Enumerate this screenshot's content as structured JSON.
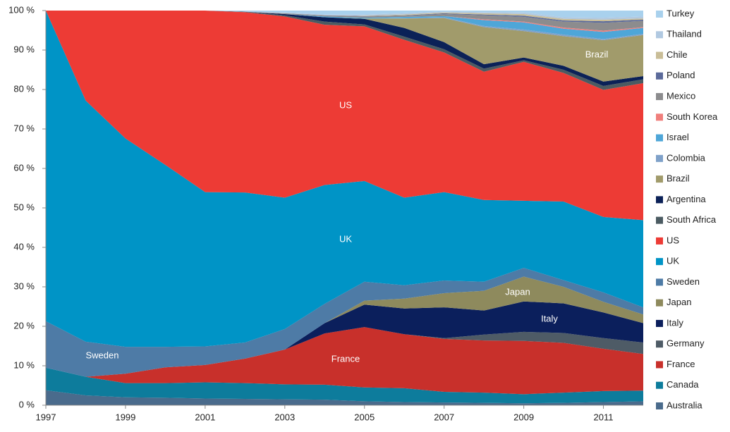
{
  "chart_data": {
    "type": "stacked_area",
    "x": [
      1997,
      1998,
      1999,
      2000,
      2001,
      2002,
      2003,
      2004,
      2005,
      2006,
      2007,
      2008,
      2009,
      2010,
      2011,
      2012
    ],
    "xlim": [
      1997,
      2012
    ],
    "xticks": [
      1997,
      1999,
      2001,
      2003,
      2005,
      2007,
      2009,
      2011
    ],
    "ylim": [
      0,
      100
    ],
    "yticks": [
      {
        "value": 0,
        "label": "0 %"
      },
      {
        "value": 10,
        "label": "10 %"
      },
      {
        "value": 20,
        "label": "20 %"
      },
      {
        "value": 30,
        "label": "30 %"
      },
      {
        "value": 40,
        "label": "40 %"
      },
      {
        "value": 50,
        "label": "50 %"
      },
      {
        "value": 60,
        "label": "60 %"
      },
      {
        "value": 70,
        "label": "70 %"
      },
      {
        "value": 80,
        "label": "80 %"
      },
      {
        "value": 90,
        "label": "90 %"
      },
      {
        "value": 100,
        "label": "100 %"
      }
    ],
    "legend": "right",
    "annotations": [
      "US",
      "UK",
      "Sweden",
      "France",
      "Japan",
      "Italy",
      "Brazil"
    ],
    "series": [
      {
        "name": "Australia",
        "color": "#4a6b8c",
        "values": [
          3.8,
          2.5,
          2.0,
          1.9,
          1.7,
          1.6,
          1.5,
          1.4,
          1.0,
          0.8,
          0.7,
          0.6,
          0.5,
          0.6,
          0.8,
          1.0
        ]
      },
      {
        "name": "Canada",
        "color": "#0d7c9c",
        "values": [
          5.7,
          4.7,
          3.6,
          3.7,
          4.1,
          4.0,
          3.8,
          3.8,
          3.5,
          3.5,
          2.7,
          2.6,
          2.3,
          2.6,
          2.8,
          2.7
        ]
      },
      {
        "name": "France",
        "color": "#c8302b",
        "values": [
          0,
          0,
          2.4,
          4.0,
          4.4,
          6.2,
          8.8,
          13.0,
          15.3,
          13.7,
          13.4,
          13.2,
          13.5,
          12.6,
          10.7,
          9.3
        ]
      },
      {
        "name": "Germany",
        "color": "#4e5b66",
        "values": [
          0,
          0,
          0,
          0,
          0,
          0,
          0,
          0,
          0,
          0,
          0.2,
          1.5,
          2.3,
          2.5,
          2.7,
          2.9
        ]
      },
      {
        "name": "Italy",
        "color": "#0b1f5c",
        "values": [
          0,
          0,
          0,
          0,
          0,
          0,
          0,
          2.6,
          5.7,
          6.5,
          7.8,
          6.1,
          7.7,
          7.5,
          6.5,
          4.9
        ]
      },
      {
        "name": "Japan",
        "color": "#8e8a5d",
        "values": [
          0,
          0,
          0,
          0,
          0,
          0,
          0,
          0,
          1.0,
          2.5,
          3.6,
          5.0,
          6.3,
          4.2,
          2.7,
          2.2
        ]
      },
      {
        "name": "Sweden",
        "color": "#4e7ba6",
        "values": [
          11.8,
          8.9,
          6.8,
          5.2,
          4.7,
          4.1,
          5.2,
          4.9,
          4.8,
          3.4,
          3.2,
          2.3,
          2.2,
          1.7,
          2.4,
          1.8
        ]
      },
      {
        "name": "UK",
        "color": "#0094c6",
        "values": [
          78.7,
          61.1,
          52.8,
          46.1,
          39.1,
          38.0,
          33.3,
          30.1,
          25.5,
          22.2,
          22.4,
          20.7,
          17.0,
          19.9,
          19.1,
          22.1
        ]
      },
      {
        "name": "US",
        "color": "#ed3b35",
        "values": [
          0,
          22.8,
          32.4,
          39.1,
          46.0,
          45.7,
          45.9,
          40.6,
          39.2,
          40.0,
          35.4,
          32.5,
          35.2,
          32.6,
          32.2,
          34.7
        ]
      },
      {
        "name": "South Africa",
        "color": "#4b5b62",
        "values": [
          0,
          0,
          0,
          0,
          0,
          0.1,
          0.3,
          0.8,
          0.5,
          0.8,
          0.8,
          0.8,
          0.4,
          0.8,
          1.0,
          1.0
        ]
      },
      {
        "name": "Argentina",
        "color": "#0b2157",
        "values": [
          0,
          0,
          0,
          0,
          0,
          0,
          0.3,
          1.1,
          1.4,
          2.2,
          1.8,
          1.1,
          0.7,
          1.0,
          1.1,
          0.8
        ]
      },
      {
        "name": "Brazil",
        "color": "#a19b6b",
        "values": [
          0,
          0,
          0,
          0,
          0,
          0,
          0,
          0,
          0.1,
          2.4,
          6.1,
          9.4,
          6.7,
          7.5,
          10.5,
          10.4
        ]
      },
      {
        "name": "Colombia",
        "color": "#7fa1c9",
        "values": [
          0,
          0,
          0,
          0,
          0,
          0,
          0,
          0,
          0,
          0.1,
          0.2,
          0.3,
          0.4,
          0.4,
          0.3,
          0.3
        ]
      },
      {
        "name": "Israel",
        "color": "#4ea6d8",
        "values": [
          0,
          0,
          0,
          0,
          0,
          0,
          0,
          0.2,
          0.2,
          0.3,
          0.3,
          1.5,
          1.8,
          1.5,
          1.8,
          1.5
        ]
      },
      {
        "name": "South Korea",
        "color": "#f07f7c",
        "values": [
          0,
          0,
          0,
          0,
          0,
          0,
          0,
          0,
          0,
          0,
          0,
          0.2,
          0.2,
          0.3,
          0.3,
          0.2
        ]
      },
      {
        "name": "Mexico",
        "color": "#8c8c8e",
        "values": [
          0,
          0,
          0,
          0,
          0,
          0,
          0.2,
          0.3,
          0.3,
          0.3,
          0.5,
          1.0,
          1.2,
          1.5,
          2.0,
          1.6
        ]
      },
      {
        "name": "Poland",
        "color": "#5b6a9a",
        "values": [
          0,
          0,
          0,
          0,
          0,
          0,
          0,
          0,
          0.1,
          0.1,
          0.2,
          0.2,
          0.3,
          0.3,
          0.4,
          0.3
        ]
      },
      {
        "name": "Chile",
        "color": "#c9bd97",
        "values": [
          0,
          0,
          0,
          0,
          0,
          0,
          0,
          0,
          0.1,
          0.2,
          0.2,
          0.3,
          0.4,
          0.4,
          0.4,
          0.3
        ]
      },
      {
        "name": "Thailand",
        "color": "#b1c9e1",
        "values": [
          0,
          0,
          0,
          0,
          0,
          0,
          0.2,
          0.2,
          0.3,
          0.3,
          0.3,
          0.3,
          0.4,
          0.4,
          0.5,
          0.5
        ]
      },
      {
        "name": "Turkey",
        "color": "#a9d1ed",
        "values": [
          0,
          0,
          0,
          0,
          0,
          0.3,
          0.5,
          1.0,
          1.0,
          0.7,
          0.2,
          0.4,
          0.5,
          1.7,
          1.8,
          1.5
        ]
      }
    ]
  }
}
